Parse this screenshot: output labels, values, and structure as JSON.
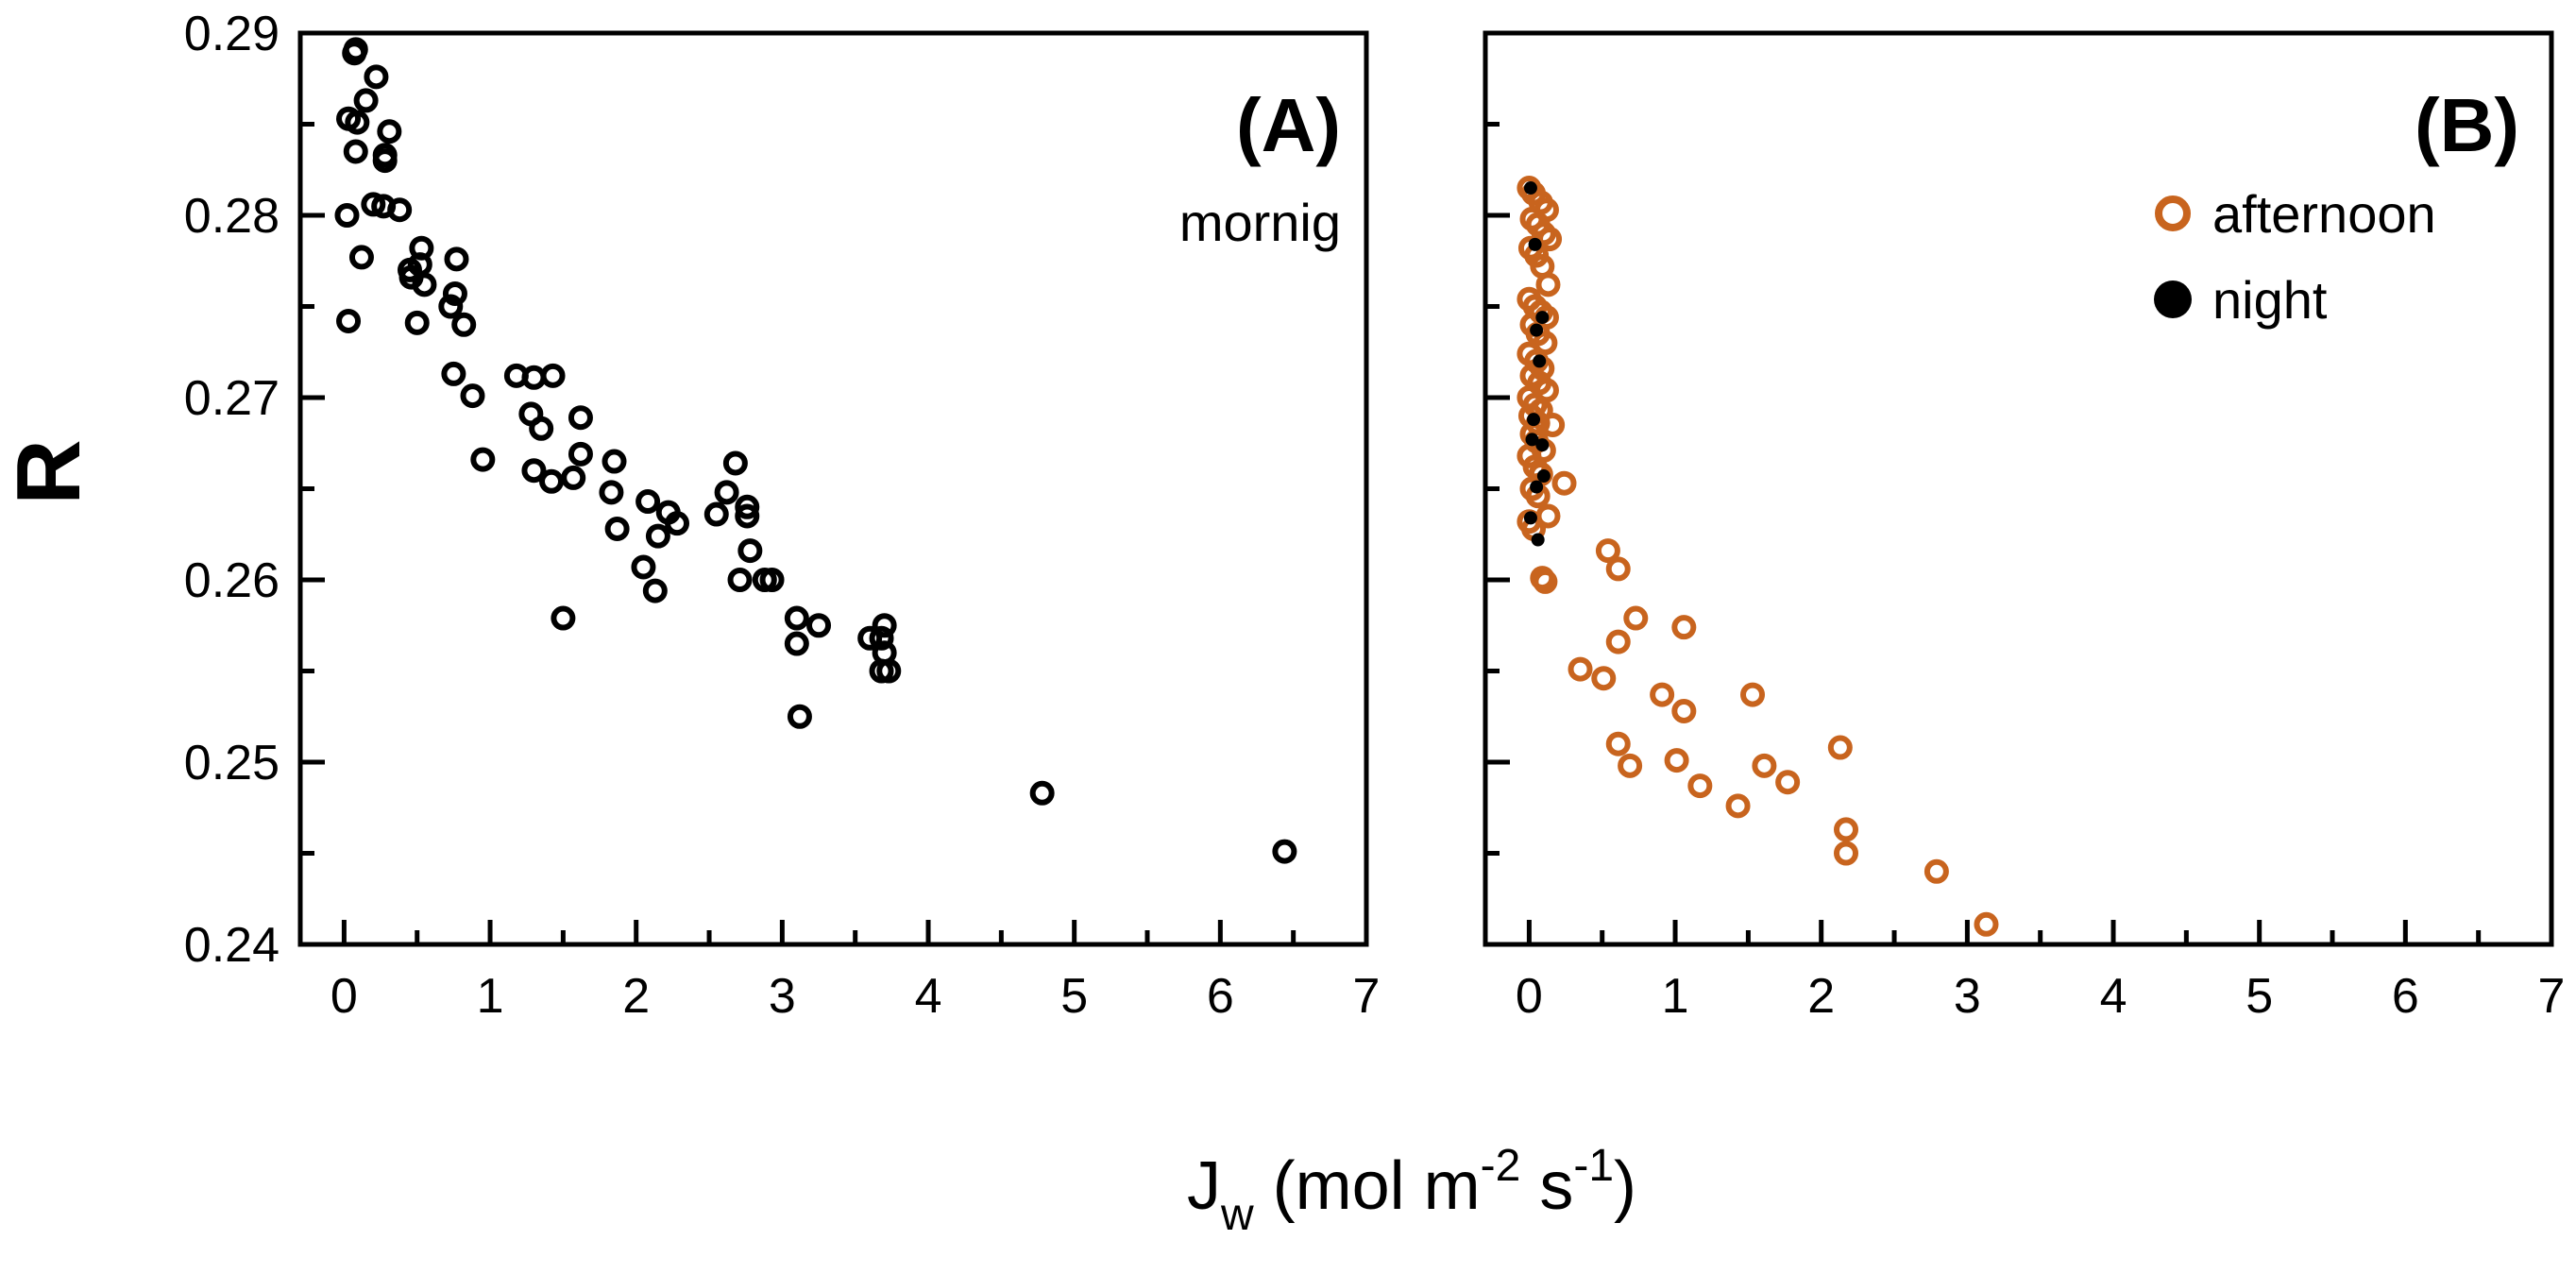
{
  "colors": {
    "morning": "#000000",
    "afternoon": "#c8641e",
    "night": "#000000",
    "axis": "#000000"
  },
  "y_axis_title": "R",
  "x_axis_title": {
    "main": "J",
    "sub": "w",
    "rest1": " (mol m",
    "sup1": "-2",
    "rest2": " s",
    "sup2": "-1",
    "rest3": ")"
  },
  "chart_data": [
    {
      "type": "scatter",
      "panel": "(A)",
      "annotation": "mornig",
      "xlabel": "Jw (mol m-2 s-1)",
      "ylabel": "R",
      "xlim": [
        -0.3,
        7
      ],
      "ylim": [
        0.24,
        0.29
      ],
      "xticks": [
        0,
        1,
        2,
        3,
        4,
        5,
        6,
        7
      ],
      "yticks": [
        0.24,
        0.25,
        0.26,
        0.27,
        0.28,
        0.29
      ],
      "ytick_labels": [
        "0.24",
        "0.25",
        "0.26",
        "0.27",
        "0.28",
        "0.29"
      ],
      "series": [
        {
          "name": "mornig",
          "marker": "open-circle",
          "points": [
            [
              0.08,
              0.2891
            ],
            [
              0.07,
              0.2889
            ],
            [
              0.22,
              0.2876
            ],
            [
              0.15,
              0.2863
            ],
            [
              0.03,
              0.2853
            ],
            [
              0.09,
              0.2851
            ],
            [
              0.31,
              0.2846
            ],
            [
              0.28,
              0.2833
            ],
            [
              0.28,
              0.283
            ],
            [
              0.08,
              0.2835
            ],
            [
              0.2,
              0.2806
            ],
            [
              0.27,
              0.2805
            ],
            [
              0.38,
              0.2803
            ],
            [
              0.02,
              0.28
            ],
            [
              0.53,
              0.2782
            ],
            [
              0.12,
              0.2777
            ],
            [
              0.77,
              0.2776
            ],
            [
              0.52,
              0.2773
            ],
            [
              0.45,
              0.277
            ],
            [
              0.46,
              0.2766
            ],
            [
              0.55,
              0.2762
            ],
            [
              0.76,
              0.2757
            ],
            [
              0.73,
              0.275
            ],
            [
              0.5,
              0.2741
            ],
            [
              0.82,
              0.274
            ],
            [
              0.03,
              0.2742
            ],
            [
              0.75,
              0.2713
            ],
            [
              1.18,
              0.2712
            ],
            [
              1.3,
              0.2711
            ],
            [
              1.43,
              0.2712
            ],
            [
              0.88,
              0.2701
            ],
            [
              1.28,
              0.2691
            ],
            [
              1.62,
              0.2689
            ],
            [
              1.35,
              0.2683
            ],
            [
              1.62,
              0.2669
            ],
            [
              1.85,
              0.2665
            ],
            [
              0.95,
              0.2666
            ],
            [
              1.3,
              0.266
            ],
            [
              1.57,
              0.2656
            ],
            [
              1.42,
              0.2654
            ],
            [
              1.83,
              0.2648
            ],
            [
              2.08,
              0.2643
            ],
            [
              2.22,
              0.2637
            ],
            [
              2.28,
              0.2631
            ],
            [
              2.68,
              0.2664
            ],
            [
              2.62,
              0.2648
            ],
            [
              2.55,
              0.2636
            ],
            [
              2.76,
              0.264
            ],
            [
              2.76,
              0.2635
            ],
            [
              2.15,
              0.2624
            ],
            [
              1.87,
              0.2628
            ],
            [
              2.05,
              0.2607
            ],
            [
              2.78,
              0.2616
            ],
            [
              2.13,
              0.2594
            ],
            [
              2.71,
              0.26
            ],
            [
              2.88,
              0.26
            ],
            [
              2.93,
              0.26
            ],
            [
              1.5,
              0.2579
            ],
            [
              3.1,
              0.2579
            ],
            [
              3.25,
              0.2575
            ],
            [
              3.1,
              0.2565
            ],
            [
              3.7,
              0.2575
            ],
            [
              3.6,
              0.2568
            ],
            [
              3.68,
              0.2568
            ],
            [
              3.7,
              0.256
            ],
            [
              3.68,
              0.255
            ],
            [
              3.73,
              0.255
            ],
            [
              3.12,
              0.2525
            ],
            [
              4.78,
              0.2483
            ],
            [
              6.44,
              0.2451
            ]
          ]
        }
      ]
    },
    {
      "type": "scatter",
      "panel": "(B)",
      "xlabel": "Jw (mol m-2 s-1)",
      "ylabel": "R",
      "xlim": [
        -0.3,
        7
      ],
      "ylim": [
        0.24,
        0.29
      ],
      "xticks": [
        0,
        1,
        2,
        3,
        4,
        5,
        6,
        7
      ],
      "yticks": [
        0.24,
        0.25,
        0.26,
        0.27,
        0.28,
        0.29
      ],
      "legend": {
        "position": "top-right",
        "entries": [
          {
            "label": "afternoon",
            "marker": "open-circle"
          },
          {
            "label": "night",
            "marker": "filled-circle"
          }
        ]
      },
      "series": [
        {
          "name": "afternoon",
          "marker": "open-circle",
          "points": [
            [
              0.0,
              0.2815
            ],
            [
              0.03,
              0.2812
            ],
            [
              0.08,
              0.2807
            ],
            [
              0.12,
              0.2803
            ],
            [
              0.02,
              0.2798
            ],
            [
              0.06,
              0.2795
            ],
            [
              0.1,
              0.279
            ],
            [
              0.14,
              0.2787
            ],
            [
              0.01,
              0.2782
            ],
            [
              0.05,
              0.2778
            ],
            [
              0.09,
              0.2772
            ],
            [
              0.13,
              0.2762
            ],
            [
              0.0,
              0.2754
            ],
            [
              0.04,
              0.275
            ],
            [
              0.08,
              0.2747
            ],
            [
              0.12,
              0.2744
            ],
            [
              0.02,
              0.274
            ],
            [
              0.06,
              0.2735
            ],
            [
              0.11,
              0.273
            ],
            [
              0.0,
              0.2724
            ],
            [
              0.05,
              0.272
            ],
            [
              0.09,
              0.2716
            ],
            [
              0.02,
              0.2712
            ],
            [
              0.07,
              0.2708
            ],
            [
              0.12,
              0.2704
            ],
            [
              0.0,
              0.27
            ],
            [
              0.04,
              0.2696
            ],
            [
              0.08,
              0.2693
            ],
            [
              0.01,
              0.269
            ],
            [
              0.06,
              0.2686
            ],
            [
              0.16,
              0.2685
            ],
            [
              0.02,
              0.268
            ],
            [
              0.05,
              0.2676
            ],
            [
              0.1,
              0.2671
            ],
            [
              0.0,
              0.2668
            ],
            [
              0.04,
              0.2662
            ],
            [
              0.08,
              0.2658
            ],
            [
              0.24,
              0.2653
            ],
            [
              0.02,
              0.265
            ],
            [
              0.06,
              0.2646
            ],
            [
              0.13,
              0.2635
            ],
            [
              0.0,
              0.2632
            ],
            [
              0.03,
              0.2628
            ],
            [
              0.09,
              0.2601
            ],
            [
              0.11,
              0.2599
            ],
            [
              0.54,
              0.2616
            ],
            [
              0.61,
              0.2606
            ],
            [
              0.73,
              0.2579
            ],
            [
              1.06,
              0.2574
            ],
            [
              0.61,
              0.2566
            ],
            [
              0.35,
              0.2551
            ],
            [
              0.51,
              0.2546
            ],
            [
              0.91,
              0.2537
            ],
            [
              1.53,
              0.2537
            ],
            [
              1.06,
              0.2528
            ],
            [
              0.61,
              0.251
            ],
            [
              2.13,
              0.2508
            ],
            [
              0.69,
              0.2498
            ],
            [
              1.01,
              0.2501
            ],
            [
              1.61,
              0.2498
            ],
            [
              1.17,
              0.2487
            ],
            [
              1.77,
              0.2489
            ],
            [
              1.43,
              0.2476
            ],
            [
              2.17,
              0.2463
            ],
            [
              2.17,
              0.245
            ],
            [
              2.79,
              0.244
            ],
            [
              3.13,
              0.2411
            ]
          ]
        },
        {
          "name": "night",
          "marker": "filled-circle",
          "points": [
            [
              0.01,
              0.2815
            ],
            [
              0.04,
              0.2784
            ],
            [
              0.09,
              0.2744
            ],
            [
              0.05,
              0.2737
            ],
            [
              0.07,
              0.272
            ],
            [
              0.03,
              0.2688
            ],
            [
              0.09,
              0.2674
            ],
            [
              0.02,
              0.2677
            ],
            [
              0.1,
              0.2657
            ],
            [
              0.05,
              0.2651
            ],
            [
              0.01,
              0.2634
            ],
            [
              0.06,
              0.2622
            ]
          ]
        }
      ]
    }
  ]
}
